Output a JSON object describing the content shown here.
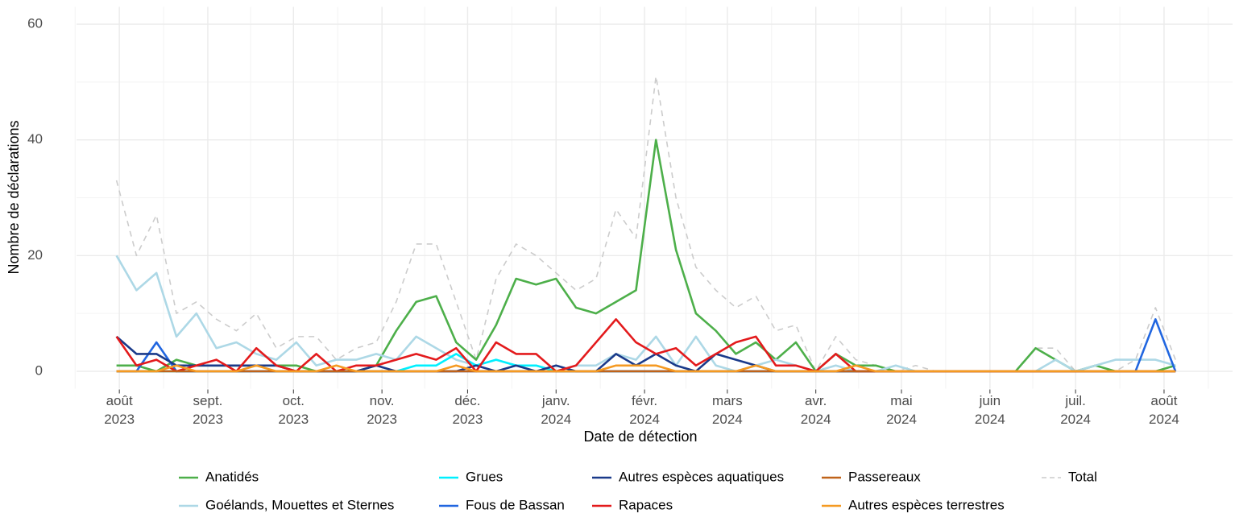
{
  "chart_data": {
    "type": "line",
    "xlabel": "Date de détection",
    "ylabel": "Nombre de déclarations",
    "x": [
      "2023-07-31",
      "2023-08-07",
      "2023-08-14",
      "2023-08-21",
      "2023-08-28",
      "2023-09-04",
      "2023-09-11",
      "2023-09-18",
      "2023-09-25",
      "2023-10-02",
      "2023-10-09",
      "2023-10-16",
      "2023-10-23",
      "2023-10-30",
      "2023-11-06",
      "2023-11-13",
      "2023-11-20",
      "2023-11-27",
      "2023-12-04",
      "2023-12-11",
      "2023-12-18",
      "2023-12-25",
      "2024-01-01",
      "2024-01-08",
      "2024-01-15",
      "2024-01-22",
      "2024-01-29",
      "2024-02-05",
      "2024-02-12",
      "2024-02-19",
      "2024-02-26",
      "2024-03-04",
      "2024-03-11",
      "2024-03-18",
      "2024-03-25",
      "2024-04-01",
      "2024-04-08",
      "2024-04-15",
      "2024-04-22",
      "2024-04-29",
      "2024-05-06",
      "2024-05-13",
      "2024-05-20",
      "2024-05-27",
      "2024-06-03",
      "2024-06-10",
      "2024-06-17",
      "2024-06-24",
      "2024-07-01",
      "2024-07-08",
      "2024-07-15",
      "2024-07-22",
      "2024-07-29",
      "2024-08-05"
    ],
    "series": [
      {
        "name": "Anatidés",
        "color": "#4daf4a",
        "values": [
          1,
          1,
          0,
          2,
          1,
          1,
          1,
          1,
          1,
          1,
          0,
          0,
          0,
          1,
          7,
          12,
          13,
          5,
          2,
          8,
          16,
          15,
          16,
          11,
          10,
          12,
          14,
          40,
          21,
          10,
          7,
          3,
          5,
          2,
          5,
          0,
          3,
          1,
          1,
          0,
          0,
          0,
          0,
          0,
          0,
          0,
          4,
          2,
          0,
          1,
          0,
          0,
          0,
          1
        ]
      },
      {
        "name": "Goélands, Mouettes et Sternes",
        "color": "#add8e6",
        "values": [
          20,
          14,
          17,
          6,
          10,
          4,
          5,
          3,
          2,
          5,
          1,
          2,
          2,
          3,
          2,
          6,
          4,
          2,
          1,
          2,
          1,
          1,
          0,
          1,
          1,
          3,
          2,
          6,
          1,
          6,
          1,
          0,
          1,
          2,
          1,
          0,
          1,
          0,
          0,
          1,
          0,
          0,
          0,
          0,
          0,
          0,
          0,
          2,
          0,
          1,
          2,
          2,
          2,
          1
        ]
      },
      {
        "name": "Grues",
        "color": "#00f0ff",
        "values": [
          0,
          0,
          0,
          0,
          0,
          0,
          0,
          0,
          0,
          0,
          0,
          0,
          0,
          0,
          0,
          1,
          1,
          3,
          1,
          2,
          1,
          1,
          0,
          0,
          0,
          0,
          0,
          0,
          0,
          0,
          0,
          0,
          0,
          0,
          0,
          0,
          0,
          0,
          0,
          0,
          0,
          0,
          0,
          0,
          0,
          0,
          0,
          0,
          0,
          0,
          0,
          0,
          0,
          0
        ]
      },
      {
        "name": "Fous de Bassan",
        "color": "#2166e0",
        "values": [
          0,
          0,
          5,
          0,
          0,
          0,
          0,
          0,
          0,
          0,
          0,
          0,
          0,
          0,
          0,
          0,
          0,
          0,
          0,
          0,
          0,
          0,
          0,
          0,
          0,
          0,
          0,
          0,
          0,
          0,
          0,
          0,
          0,
          0,
          0,
          0,
          0,
          0,
          0,
          0,
          0,
          0,
          0,
          0,
          0,
          0,
          0,
          0,
          0,
          0,
          0,
          0,
          9,
          0
        ]
      },
      {
        "name": "Autres espèces aquatiques",
        "color": "#1a3a8a",
        "values": [
          6,
          3,
          3,
          1,
          1,
          1,
          1,
          1,
          1,
          0,
          0,
          0,
          0,
          1,
          0,
          0,
          0,
          0,
          1,
          0,
          1,
          0,
          1,
          0,
          0,
          3,
          1,
          3,
          1,
          0,
          3,
          2,
          1,
          0,
          0,
          0,
          0,
          0,
          0,
          0,
          0,
          0,
          0,
          0,
          0,
          0,
          0,
          0,
          0,
          0,
          0,
          0,
          0,
          0
        ]
      },
      {
        "name": "Rapaces",
        "color": "#e31a1c",
        "values": [
          6,
          1,
          2,
          0,
          1,
          2,
          0,
          4,
          1,
          0,
          3,
          0,
          1,
          1,
          2,
          3,
          2,
          4,
          0,
          5,
          3,
          3,
          0,
          1,
          5,
          9,
          5,
          3,
          4,
          1,
          3,
          5,
          6,
          1,
          1,
          0,
          3,
          0,
          0,
          0,
          0,
          0,
          0,
          0,
          0,
          0,
          0,
          0,
          0,
          0,
          0,
          0,
          0,
          0
        ]
      },
      {
        "name": "Passereaux",
        "color": "#c0631a",
        "values": [
          0,
          0,
          0,
          0,
          0,
          0,
          0,
          0,
          0,
          0,
          0,
          0,
          0,
          0,
          0,
          0,
          0,
          0,
          0,
          0,
          0,
          0,
          0,
          0,
          0,
          0,
          0,
          0,
          0,
          0,
          0,
          0,
          0,
          0,
          0,
          0,
          0,
          0,
          0,
          0,
          0,
          0,
          0,
          0,
          0,
          0,
          0,
          0,
          0,
          0,
          0,
          0,
          0,
          0
        ]
      },
      {
        "name": "Autres espèces terrestres",
        "color": "#f59a22",
        "values": [
          0,
          0,
          0,
          1,
          0,
          0,
          0,
          1,
          0,
          0,
          0,
          1,
          0,
          0,
          0,
          0,
          0,
          1,
          0,
          0,
          0,
          0,
          0,
          0,
          0,
          1,
          1,
          1,
          0,
          0,
          0,
          0,
          1,
          0,
          0,
          0,
          0,
          1,
          0,
          0,
          0,
          0,
          0,
          0,
          0,
          0,
          0,
          0,
          0,
          0,
          0,
          0,
          0,
          0
        ]
      },
      {
        "name": "Total",
        "color": "#cccccc",
        "dashed": true,
        "values": [
          33,
          20,
          27,
          10,
          12,
          9,
          7,
          10,
          4,
          6,
          6,
          2,
          4,
          5,
          12,
          22,
          22,
          12,
          2,
          16,
          22,
          20,
          17,
          14,
          16,
          28,
          23,
          51,
          30,
          18,
          14,
          11,
          13,
          7,
          8,
          0,
          6,
          2,
          1,
          0,
          1,
          0,
          0,
          0,
          0,
          0,
          4,
          4,
          0,
          1,
          0,
          2,
          11,
          2
        ]
      }
    ],
    "xlim": [
      "2023-07-17",
      "2024-08-25"
    ],
    "xticks": [
      {
        "value": "2023-08-01",
        "label": "août 2023"
      },
      {
        "value": "2023-09-01",
        "label": "sept. 2023"
      },
      {
        "value": "2023-10-01",
        "label": "oct. 2023"
      },
      {
        "value": "2023-11-01",
        "label": "nov. 2023"
      },
      {
        "value": "2023-12-01",
        "label": "déc. 2023"
      },
      {
        "value": "2024-01-01",
        "label": "janv. 2024"
      },
      {
        "value": "2024-02-01",
        "label": "févr. 2024"
      },
      {
        "value": "2024-03-01",
        "label": "mars 2024"
      },
      {
        "value": "2024-04-01",
        "label": "avr. 2024"
      },
      {
        "value": "2024-05-01",
        "label": "mai 2024"
      },
      {
        "value": "2024-06-01",
        "label": "juin 2024"
      },
      {
        "value": "2024-07-01",
        "label": "juil. 2024"
      },
      {
        "value": "2024-08-01",
        "label": "août 2024"
      }
    ],
    "ylim": [
      -3,
      63
    ],
    "yticks": [
      0,
      20,
      40,
      60
    ],
    "grid": true,
    "legend": "bottom"
  }
}
